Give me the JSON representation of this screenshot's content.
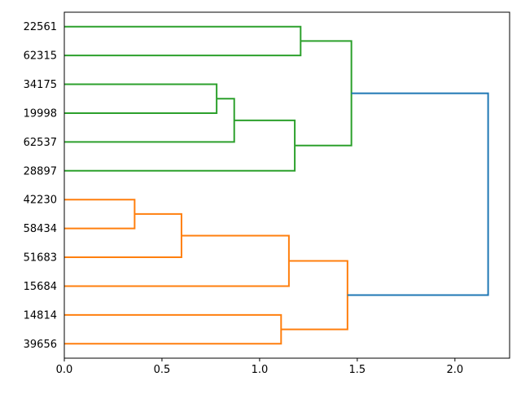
{
  "figure": {
    "background": "#ffffff",
    "description": "Hierarchical clustering dendrogram, horizontal orientation, leaf labels on the left"
  },
  "chart_data": {
    "type": "dendrogram",
    "orientation": "right",
    "title": "",
    "xlabel": "",
    "ylabel": "",
    "grid": false,
    "xlim": [
      0,
      2.28
    ],
    "xticks": [
      {
        "value": 0,
        "label": "0.0"
      },
      {
        "value": 0.5,
        "label": "0.5"
      },
      {
        "value": 1,
        "label": "1.0"
      },
      {
        "value": 1.5,
        "label": "1.5"
      },
      {
        "value": 2,
        "label": "2.0"
      }
    ],
    "leaves": [
      "22561",
      "62315",
      "34175",
      "19998",
      "62537",
      "28897",
      "42230",
      "58434",
      "51683",
      "15684",
      "14814",
      "39656"
    ],
    "colors": {
      "cluster_green": "#2ca02c",
      "cluster_orange": "#ff7f0e",
      "root_blue": "#1f77b4",
      "axis": "#000000",
      "text": "#000000"
    },
    "links": [
      {
        "name": "34175-19998",
        "color": "cluster_green",
        "distance": 0.78,
        "rows": [
          2,
          3
        ],
        "child_distances": [
          0,
          0
        ]
      },
      {
        "name": "(34175-19998)-62537",
        "color": "cluster_green",
        "distance": 0.87,
        "rows": [
          2.5,
          4
        ],
        "child_distances": [
          0.78,
          0
        ]
      },
      {
        "name": "greenmid-28897",
        "color": "cluster_green",
        "distance": 1.18,
        "rows": [
          3.25,
          5
        ],
        "child_distances": [
          0.87,
          0
        ]
      },
      {
        "name": "22561-62315",
        "color": "cluster_green",
        "distance": 1.21,
        "rows": [
          0,
          1
        ],
        "child_distances": [
          0,
          0
        ]
      },
      {
        "name": "green-top",
        "color": "cluster_green",
        "distance": 1.47,
        "rows": [
          0.5,
          4.125
        ],
        "child_distances": [
          1.21,
          1.18
        ]
      },
      {
        "name": "42230-58434",
        "color": "cluster_orange",
        "distance": 0.36,
        "rows": [
          6,
          7
        ],
        "child_distances": [
          0,
          0
        ]
      },
      {
        "name": "(42230-58434)-51683",
        "color": "cluster_orange",
        "distance": 0.6,
        "rows": [
          6.5,
          8
        ],
        "child_distances": [
          0.36,
          0
        ]
      },
      {
        "name": "orangemid-15684",
        "color": "cluster_orange",
        "distance": 1.15,
        "rows": [
          7.25,
          9
        ],
        "child_distances": [
          0.6,
          0
        ]
      },
      {
        "name": "14814-39656",
        "color": "cluster_orange",
        "distance": 1.11,
        "rows": [
          10,
          11
        ],
        "child_distances": [
          0,
          0
        ]
      },
      {
        "name": "orange-top",
        "color": "cluster_orange",
        "distance": 1.45,
        "rows": [
          8.125,
          10.5
        ],
        "child_distances": [
          1.15,
          1.11
        ]
      },
      {
        "name": "root",
        "color": "root_blue",
        "distance": 2.17,
        "rows": [
          2.3125,
          9.3125
        ],
        "child_distances": [
          1.47,
          1.45
        ]
      }
    ]
  }
}
